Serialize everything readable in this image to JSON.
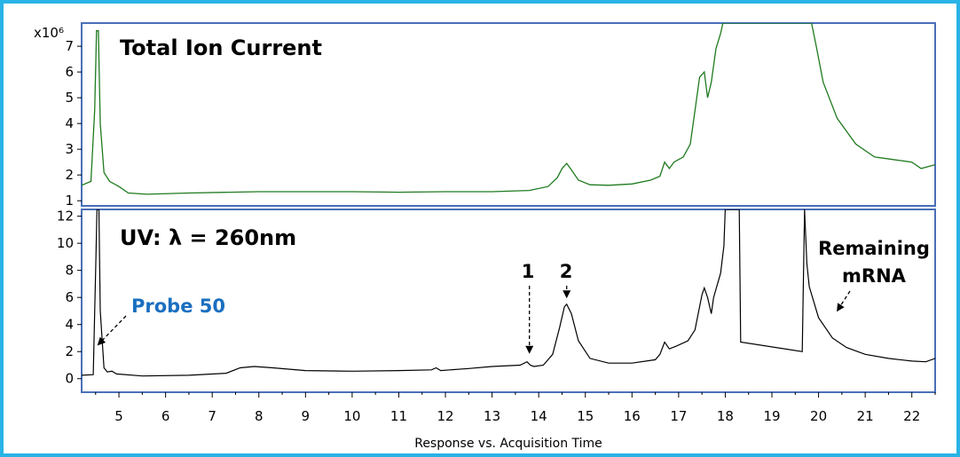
{
  "colors": {
    "frame": "#29b3e6",
    "panel_border": "#4a6fb8",
    "tic_trace": "#1f7a1f",
    "uv_trace": "#000000",
    "probe_label": "#1a6fc0"
  },
  "chart_data": [
    {
      "type": "line",
      "title": "Total Ion Current",
      "y_multiplier": "x10⁶",
      "xlim": [
        4.2,
        22.5
      ],
      "ylim": [
        0.8,
        7.9
      ],
      "yticks": [
        "1",
        "2",
        "3",
        "4",
        "5",
        "6",
        "7"
      ],
      "series": [
        {
          "x": [
            4.2,
            4.4,
            4.48,
            4.52,
            4.56,
            4.6,
            4.68,
            4.8,
            5.0,
            5.2,
            5.6,
            6.5,
            8.0,
            9.0,
            10.0,
            11.0,
            12.0,
            13.0,
            13.8,
            14.2,
            14.4,
            14.5,
            14.6,
            14.7,
            14.85,
            15.1,
            15.5,
            16.0,
            16.4,
            16.6,
            16.7,
            16.8,
            16.9,
            17.1,
            17.25,
            17.35,
            17.45,
            17.55,
            17.62,
            17.7,
            17.8,
            17.9,
            17.95,
            19.85,
            19.95,
            20.1,
            20.4,
            20.8,
            21.2,
            21.6,
            22.0,
            22.2,
            22.5
          ],
          "y": [
            1.6,
            1.75,
            4.5,
            7.6,
            7.6,
            4.0,
            2.1,
            1.75,
            1.55,
            1.3,
            1.25,
            1.3,
            1.35,
            1.35,
            1.35,
            1.33,
            1.35,
            1.35,
            1.4,
            1.55,
            1.9,
            2.25,
            2.45,
            2.2,
            1.8,
            1.62,
            1.6,
            1.65,
            1.8,
            1.95,
            2.5,
            2.25,
            2.5,
            2.7,
            3.2,
            4.5,
            5.8,
            6.0,
            5.0,
            5.6,
            6.9,
            7.5,
            7.9,
            7.9,
            7.0,
            5.6,
            4.2,
            3.2,
            2.7,
            2.6,
            2.5,
            2.25,
            2.4
          ]
        }
      ]
    },
    {
      "type": "line",
      "title": "UV: λ = 260nm",
      "xlabel": "Response vs. Acquisition Time",
      "xlim": [
        4.2,
        22.5
      ],
      "ylim": [
        -1.0,
        12.5
      ],
      "yticks": [
        "0",
        "2",
        "4",
        "6",
        "8",
        "10",
        "12"
      ],
      "xticks": [
        "5",
        "6",
        "7",
        "8",
        "9",
        "10",
        "11",
        "12",
        "13",
        "14",
        "15",
        "16",
        "17",
        "18",
        "19",
        "20",
        "21",
        "22"
      ],
      "series": [
        {
          "x": [
            4.2,
            4.45,
            4.5,
            4.53,
            4.57,
            4.6,
            4.68,
            4.75,
            4.85,
            4.95,
            5.5,
            6.5,
            7.3,
            7.6,
            7.9,
            8.3,
            9.0,
            10.0,
            11.0,
            11.7,
            11.8,
            11.9,
            12.5,
            13.0,
            13.6,
            13.75,
            13.82,
            13.9,
            14.1,
            14.3,
            14.45,
            14.55,
            14.6,
            14.7,
            14.85,
            15.1,
            15.5,
            16.0,
            16.5,
            16.6,
            16.7,
            16.8,
            16.95,
            17.2,
            17.35,
            17.5,
            17.55,
            17.62,
            17.7,
            17.75,
            17.9,
            17.97,
            18.0,
            18.08,
            18.3,
            18.33,
            19.65,
            19.7,
            19.75,
            19.8,
            20.0,
            20.3,
            20.6,
            21.0,
            21.5,
            22.0,
            22.3,
            22.5
          ],
          "y": [
            0.25,
            0.3,
            8.0,
            12.5,
            12.5,
            5.0,
            0.8,
            0.5,
            0.55,
            0.35,
            0.2,
            0.25,
            0.4,
            0.8,
            0.9,
            0.8,
            0.6,
            0.55,
            0.6,
            0.65,
            0.8,
            0.6,
            0.75,
            0.9,
            1.0,
            1.25,
            1.0,
            0.9,
            1.0,
            1.8,
            3.8,
            5.3,
            5.5,
            4.8,
            2.8,
            1.5,
            1.15,
            1.15,
            1.4,
            1.8,
            2.7,
            2.2,
            2.4,
            2.8,
            3.6,
            6.2,
            6.7,
            6.0,
            4.8,
            6.0,
            7.8,
            9.8,
            12.5,
            12.5,
            12.5,
            2.7,
            2.0,
            12.5,
            8.5,
            6.8,
            4.5,
            3.0,
            2.3,
            1.8,
            1.5,
            1.3,
            1.25,
            1.5
          ]
        }
      ]
    }
  ],
  "annotations": {
    "probe": {
      "label": "Probe 50",
      "x": 4.55,
      "y": 2.5
    },
    "peak1": {
      "label": "1",
      "x": 13.8,
      "y": 1.9
    },
    "peak2": {
      "label": "2",
      "x": 14.6,
      "y": 6.0
    },
    "mrna": {
      "line1": "Remaining",
      "line2": "mRNA",
      "x": 20.4,
      "y": 5.0
    }
  }
}
